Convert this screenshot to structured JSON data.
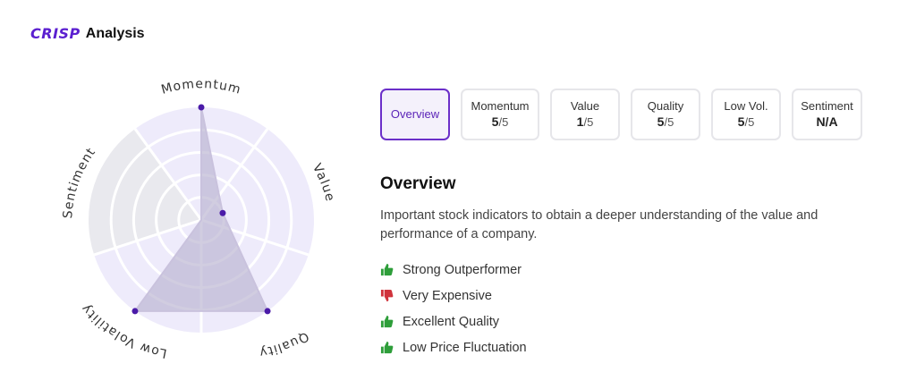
{
  "header": {
    "logo": "CRISP",
    "title": "Analysis"
  },
  "colors": {
    "brand": "#5b1fd0",
    "active_border": "#6b2fc9",
    "thumb_up": "#2e9e3a",
    "thumb_down": "#d0333c"
  },
  "radar": {
    "axes": [
      {
        "label": "Momentum",
        "score": 5
      },
      {
        "label": "Value",
        "score": 1
      },
      {
        "label": "Quality",
        "score": 5
      },
      {
        "label": "Low Volatility",
        "score": 5
      },
      {
        "label": "Sentiment",
        "score": null
      }
    ],
    "max": 5
  },
  "tabs": [
    {
      "label": "Overview",
      "score": "",
      "den": "",
      "active": true
    },
    {
      "label": "Momentum",
      "score": "5",
      "den": "/5",
      "active": false
    },
    {
      "label": "Value",
      "score": "1",
      "den": "/5",
      "active": false
    },
    {
      "label": "Quality",
      "score": "5",
      "den": "/5",
      "active": false
    },
    {
      "label": "Low Vol.",
      "score": "5",
      "den": "/5",
      "active": false
    },
    {
      "label": "Sentiment",
      "score": "N/A",
      "den": "",
      "active": false
    }
  ],
  "overview": {
    "title": "Overview",
    "description": "Important stock indicators to obtain a deeper understanding of the value and performance of a company.",
    "factors": [
      {
        "text": "Strong Outperformer",
        "icon": "thumbs-up-icon"
      },
      {
        "text": "Very Expensive",
        "icon": "thumbs-down-icon"
      },
      {
        "text": "Excellent Quality",
        "icon": "thumbs-up-icon"
      },
      {
        "text": "Low Price Fluctuation",
        "icon": "thumbs-up-icon"
      }
    ]
  }
}
